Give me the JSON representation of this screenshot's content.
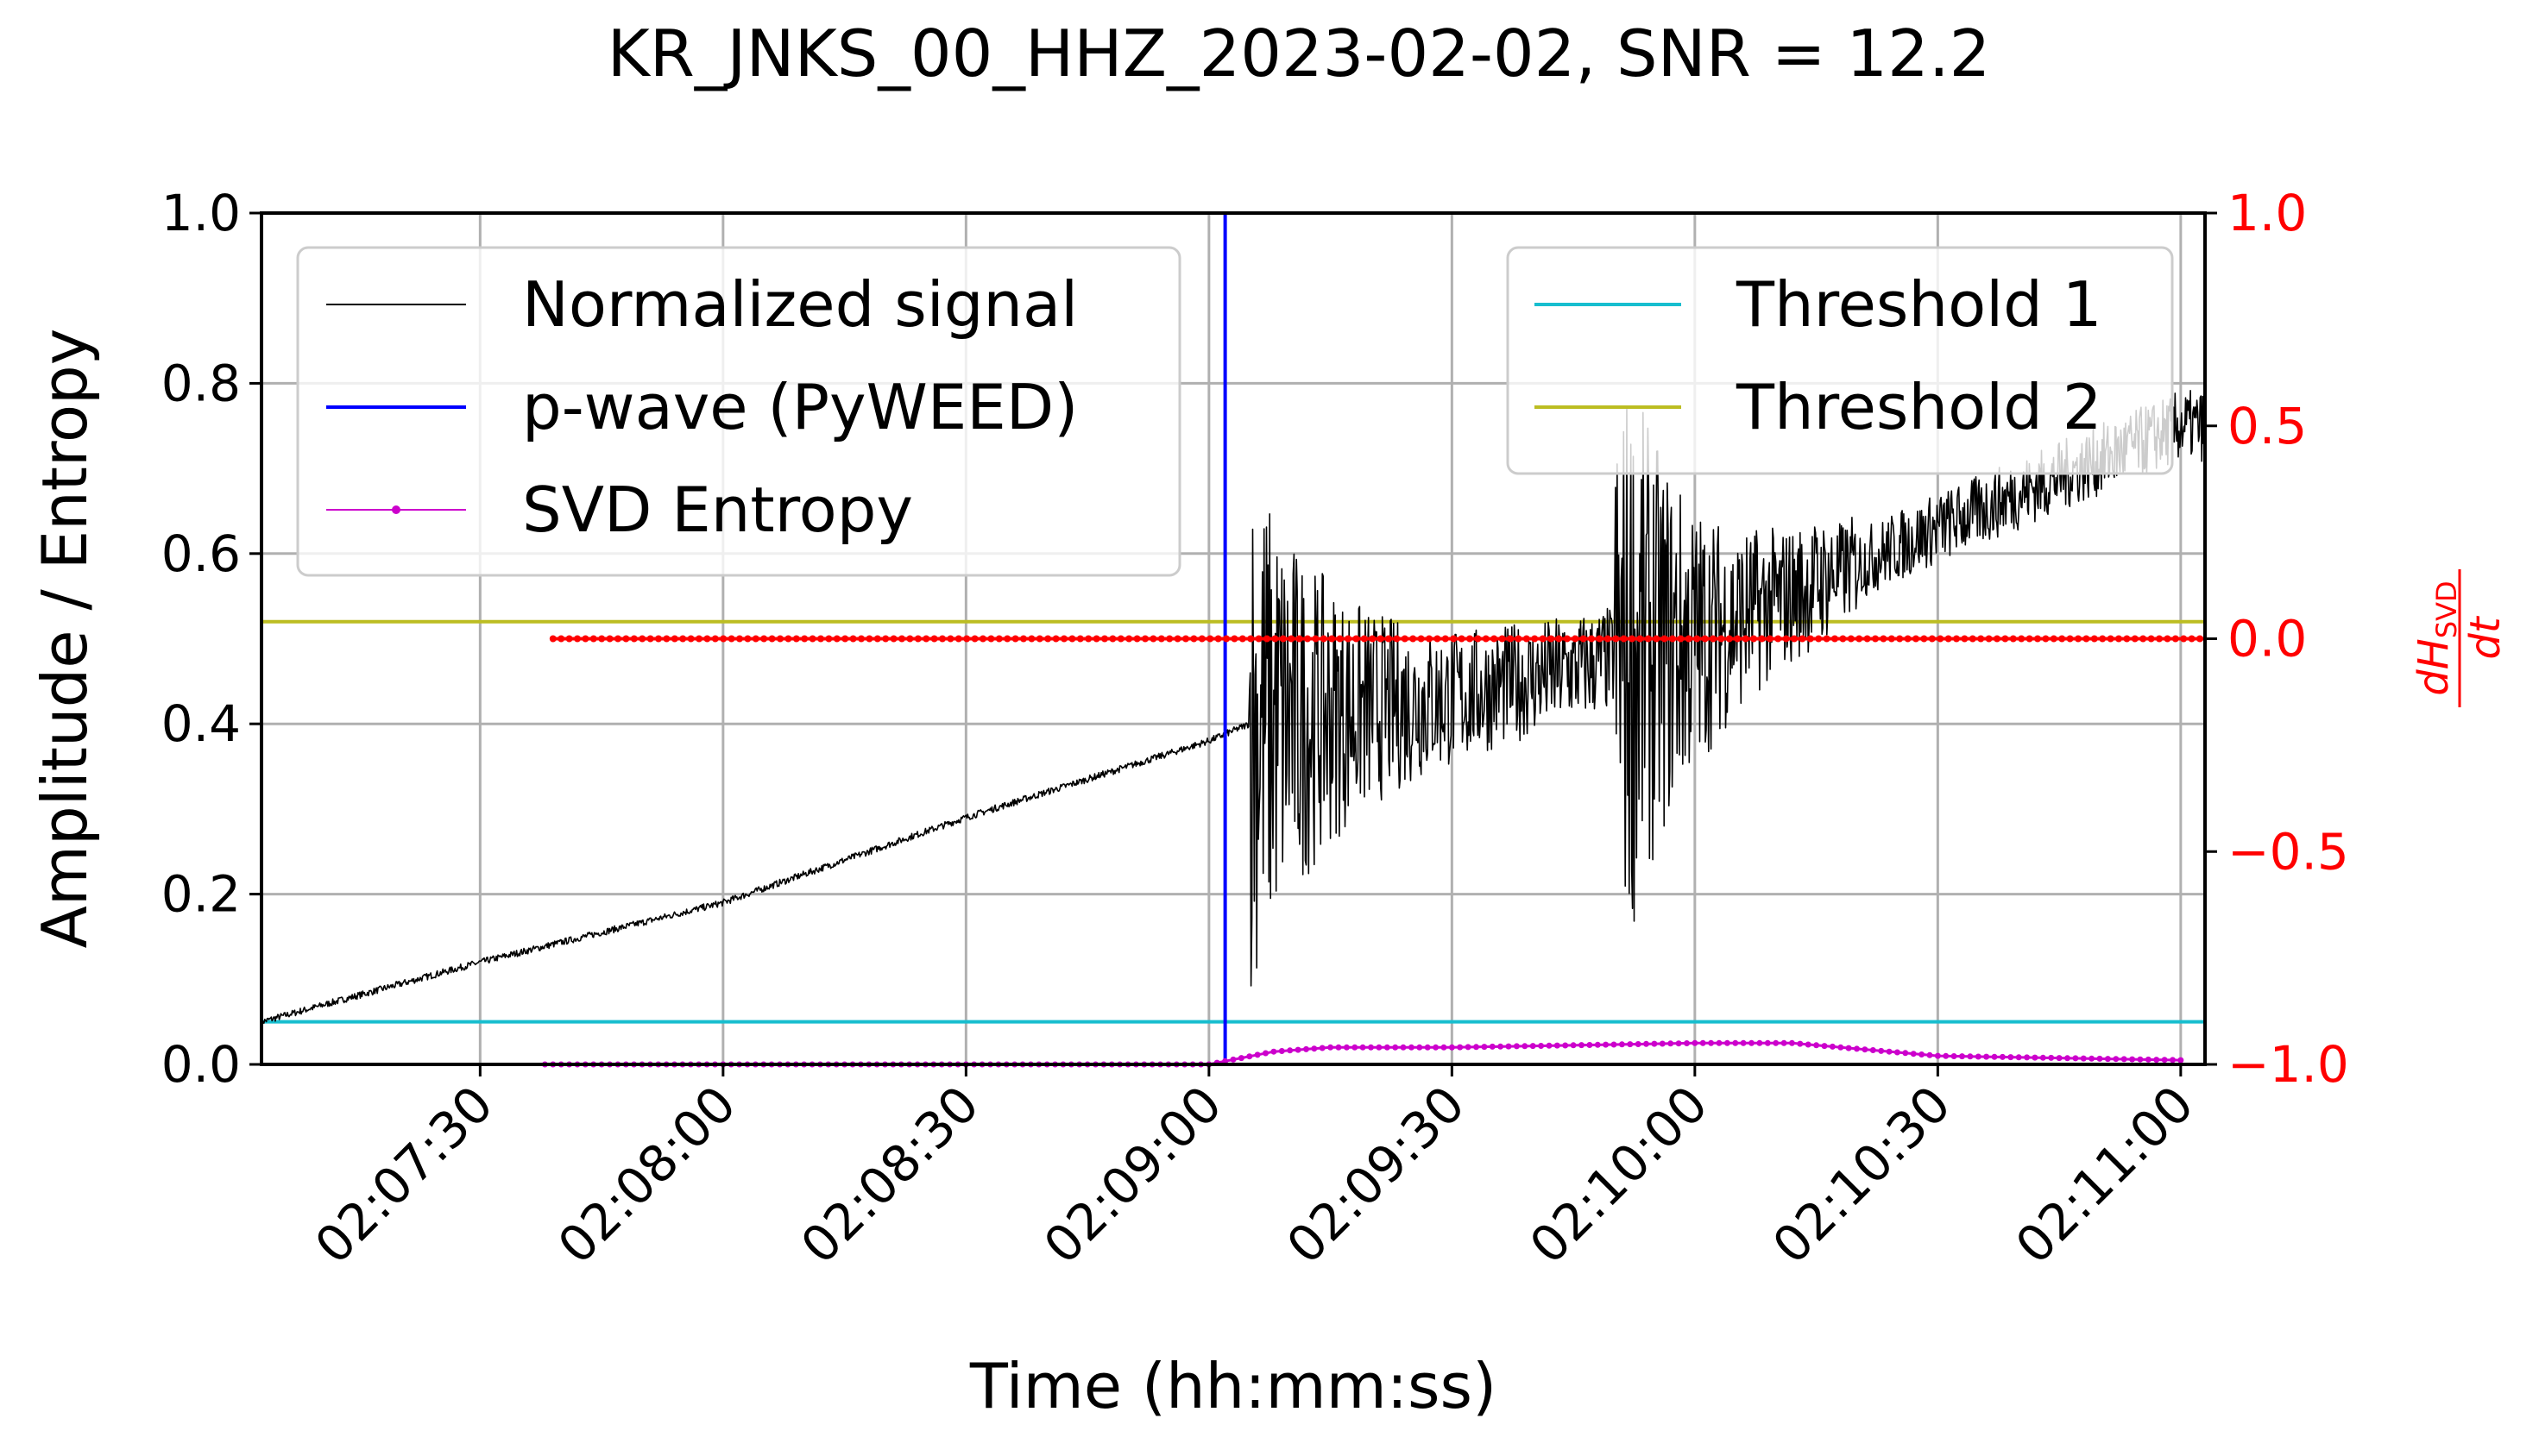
{
  "chart_data": {
    "type": "line",
    "title": "KR_JNKS_00_HHZ_2023-02-02, SNR = 12.2",
    "xlabel": "Time (hh:mm:ss)",
    "ylabel": "Amplitude / Entropy",
    "ylabel_right": "dH_SVD / dt",
    "xlim": [
      "02:07:03",
      "02:11:03"
    ],
    "ylim": [
      0.0,
      1.0
    ],
    "ylim_right": [
      -1.0,
      1.0
    ],
    "x_ticks": [
      "02:07:30",
      "02:08:00",
      "02:08:30",
      "02:09:00",
      "02:09:30",
      "02:10:00",
      "02:10:30",
      "02:11:00"
    ],
    "y_ticks": [
      "0.0",
      "0.2",
      "0.4",
      "0.6",
      "0.8",
      "1.0"
    ],
    "y_ticks_right": [
      "−1.0",
      "−0.5",
      "0.0",
      "0.5",
      "1.0"
    ],
    "grid": true,
    "legend_left": [
      "Normalized signal",
      "p-wave (PyWEED)",
      "SVD Entropy"
    ],
    "legend_right": [
      "Threshold 1",
      "Threshold 2"
    ],
    "legend_left_placement": "upper left",
    "legend_right_placement": "upper right",
    "series": [
      {
        "name": "Normalized signal",
        "color": "#000000",
        "x": [
          "02:07:03",
          "02:07:30",
          "02:08:00",
          "02:08:30",
          "02:09:00",
          "02:09:05",
          "02:09:30",
          "02:10:00",
          "02:10:30",
          "02:11:00",
          "02:11:03"
        ],
        "y": [
          0.05,
          0.12,
          0.19,
          0.29,
          0.38,
          0.4,
          0.43,
          0.5,
          0.63,
          0.75,
          0.75
        ]
      },
      {
        "name": "p-wave (PyWEED)",
        "color": "#0000ff",
        "x": [
          "02:09:02",
          "02:09:02"
        ],
        "y": [
          0.0,
          1.0
        ]
      },
      {
        "name": "SVD Entropy",
        "color": "#cc00cc",
        "x": [
          "02:07:38",
          "02:09:00",
          "02:09:08",
          "02:09:15",
          "02:09:30",
          "02:10:00",
          "02:10:12",
          "02:10:30",
          "02:11:00"
        ],
        "y": [
          0.0,
          0.0,
          0.015,
          0.02,
          0.02,
          0.025,
          0.025,
          0.01,
          0.005
        ]
      },
      {
        "name": "Threshold 1",
        "color": "#17becf",
        "x": [
          "02:07:03",
          "02:11:03"
        ],
        "y": [
          0.05,
          0.05
        ]
      },
      {
        "name": "Threshold 2",
        "color": "#bcbd22",
        "x": [
          "02:07:03",
          "02:11:03"
        ],
        "y": [
          0.52,
          0.52
        ]
      },
      {
        "name": "dH_SVD/dt",
        "color": "#ff0000",
        "axis": "right",
        "x": [
          "02:07:39",
          "02:11:03"
        ],
        "y": [
          0.0,
          0.0
        ]
      }
    ]
  }
}
